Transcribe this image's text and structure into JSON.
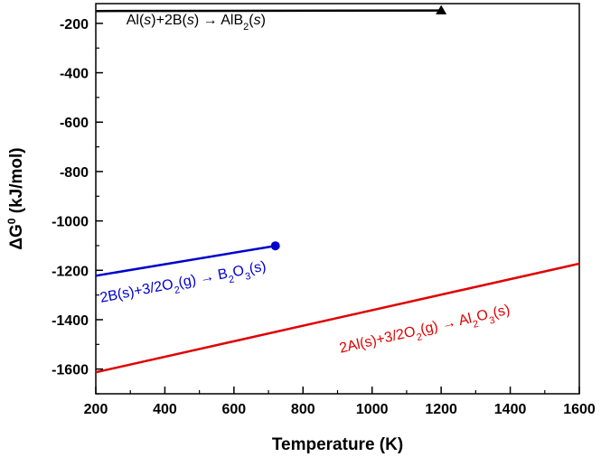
{
  "chart_data": {
    "type": "line",
    "xlabel": "Temperature (K)",
    "ylabel_main": "ΔG",
    "ylabel_sup": "0",
    "ylabel_unit": " (kJ/mol)",
    "xlim": [
      200,
      1600
    ],
    "ylim": [
      -1700,
      -120
    ],
    "xticks": [
      200,
      400,
      600,
      800,
      1000,
      1200,
      1400,
      1600
    ],
    "yticks": [
      -1600,
      -1400,
      -1200,
      -1000,
      -800,
      -600,
      -400,
      -200
    ],
    "grid": false,
    "series": [
      {
        "key": "alb2",
        "color": "#000000",
        "marker": "triangle",
        "x": [
          200,
          1200
        ],
        "y": [
          -150,
          -148
        ],
        "annotation": {
          "parts": [
            "Al(",
            "s",
            ")+2B(",
            "s",
            ") → AlB",
            "2",
            "(",
            "s",
            ")"
          ],
          "x": 490,
          "y": -205,
          "rotate": 0
        }
      },
      {
        "key": "b2o3",
        "color": "#0000cc",
        "marker": "circle",
        "x": [
          200,
          720
        ],
        "y": [
          -1222,
          -1101
        ],
        "annotation": {
          "parts": [
            "2B(s)+3/2O",
            "2",
            "(g) → B",
            "2",
            "O",
            "3",
            "(s)"
          ],
          "x": 455,
          "y": -1265,
          "rotate": -11
        }
      },
      {
        "key": "al2o3",
        "color": "#e00000",
        "marker": "none",
        "x": [
          200,
          1600
        ],
        "y": [
          -1613,
          -1173
        ],
        "annotation": {
          "parts": [
            "2Al(s)+3/2O",
            "2",
            "(g) → Al",
            "2",
            "O",
            "3",
            "(s)"
          ],
          "x": 1155,
          "y": -1455,
          "rotate": -13
        }
      }
    ]
  }
}
